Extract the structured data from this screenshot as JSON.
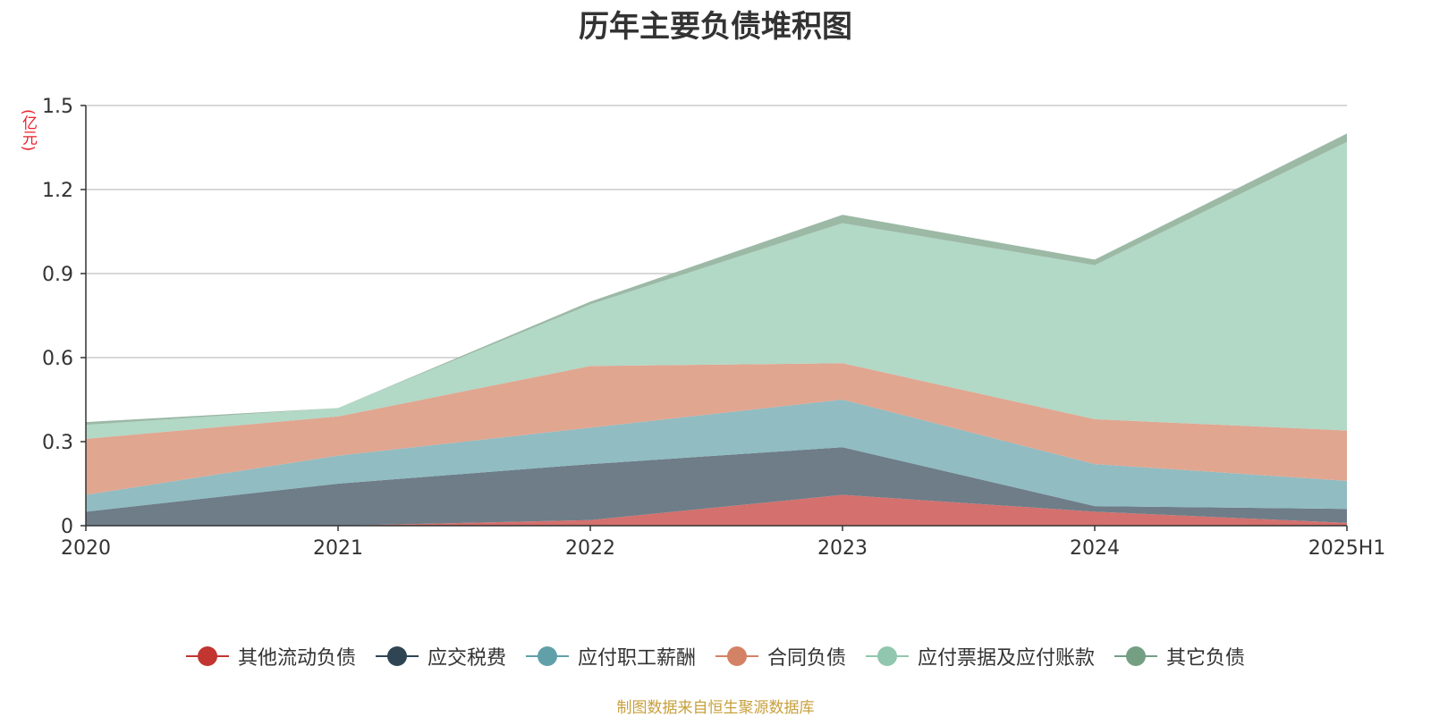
{
  "chart_data": {
    "type": "area",
    "stacked": true,
    "title": "历年主要负债堆积图",
    "unit_label": "(亿元)",
    "categories": [
      "2020",
      "2021",
      "2022",
      "2023",
      "2024",
      "2025H1"
    ],
    "ylim": [
      0,
      1.5
    ],
    "yticks": [
      "0",
      "0.3",
      "0.6",
      "0.9",
      "1.2",
      "1.5"
    ],
    "grid": true,
    "legend_position": "bottom",
    "series": [
      {
        "name": "其他流动负债",
        "values": [
          0.0,
          0.0,
          0.02,
          0.11,
          0.05,
          0.01
        ],
        "color": "#c23531",
        "fill": "#d4706d"
      },
      {
        "name": "应交税费",
        "values": [
          0.05,
          0.15,
          0.2,
          0.17,
          0.02,
          0.05
        ],
        "color": "#2f4554",
        "fill": "#6e7d88"
      },
      {
        "name": "应付职工薪酬",
        "values": [
          0.06,
          0.1,
          0.13,
          0.17,
          0.15,
          0.1
        ],
        "color": "#61a0a8",
        "fill": "#90bcc2"
      },
      {
        "name": "合同负债",
        "values": [
          0.2,
          0.14,
          0.22,
          0.13,
          0.16,
          0.18
        ],
        "color": "#d48265",
        "fill": "#e0a690"
      },
      {
        "name": "应付票据及应付账款",
        "values": [
          0.05,
          0.03,
          0.22,
          0.5,
          0.55,
          1.03
        ],
        "color": "#91c7ae",
        "fill": "#b2d8c6"
      },
      {
        "name": "其它负债",
        "values": [
          0.01,
          0.0,
          0.01,
          0.03,
          0.02,
          0.03
        ],
        "color": "#749f83",
        "fill": "#9cb9a6"
      }
    ]
  },
  "source_note": "制图数据来自恒生聚源数据库"
}
